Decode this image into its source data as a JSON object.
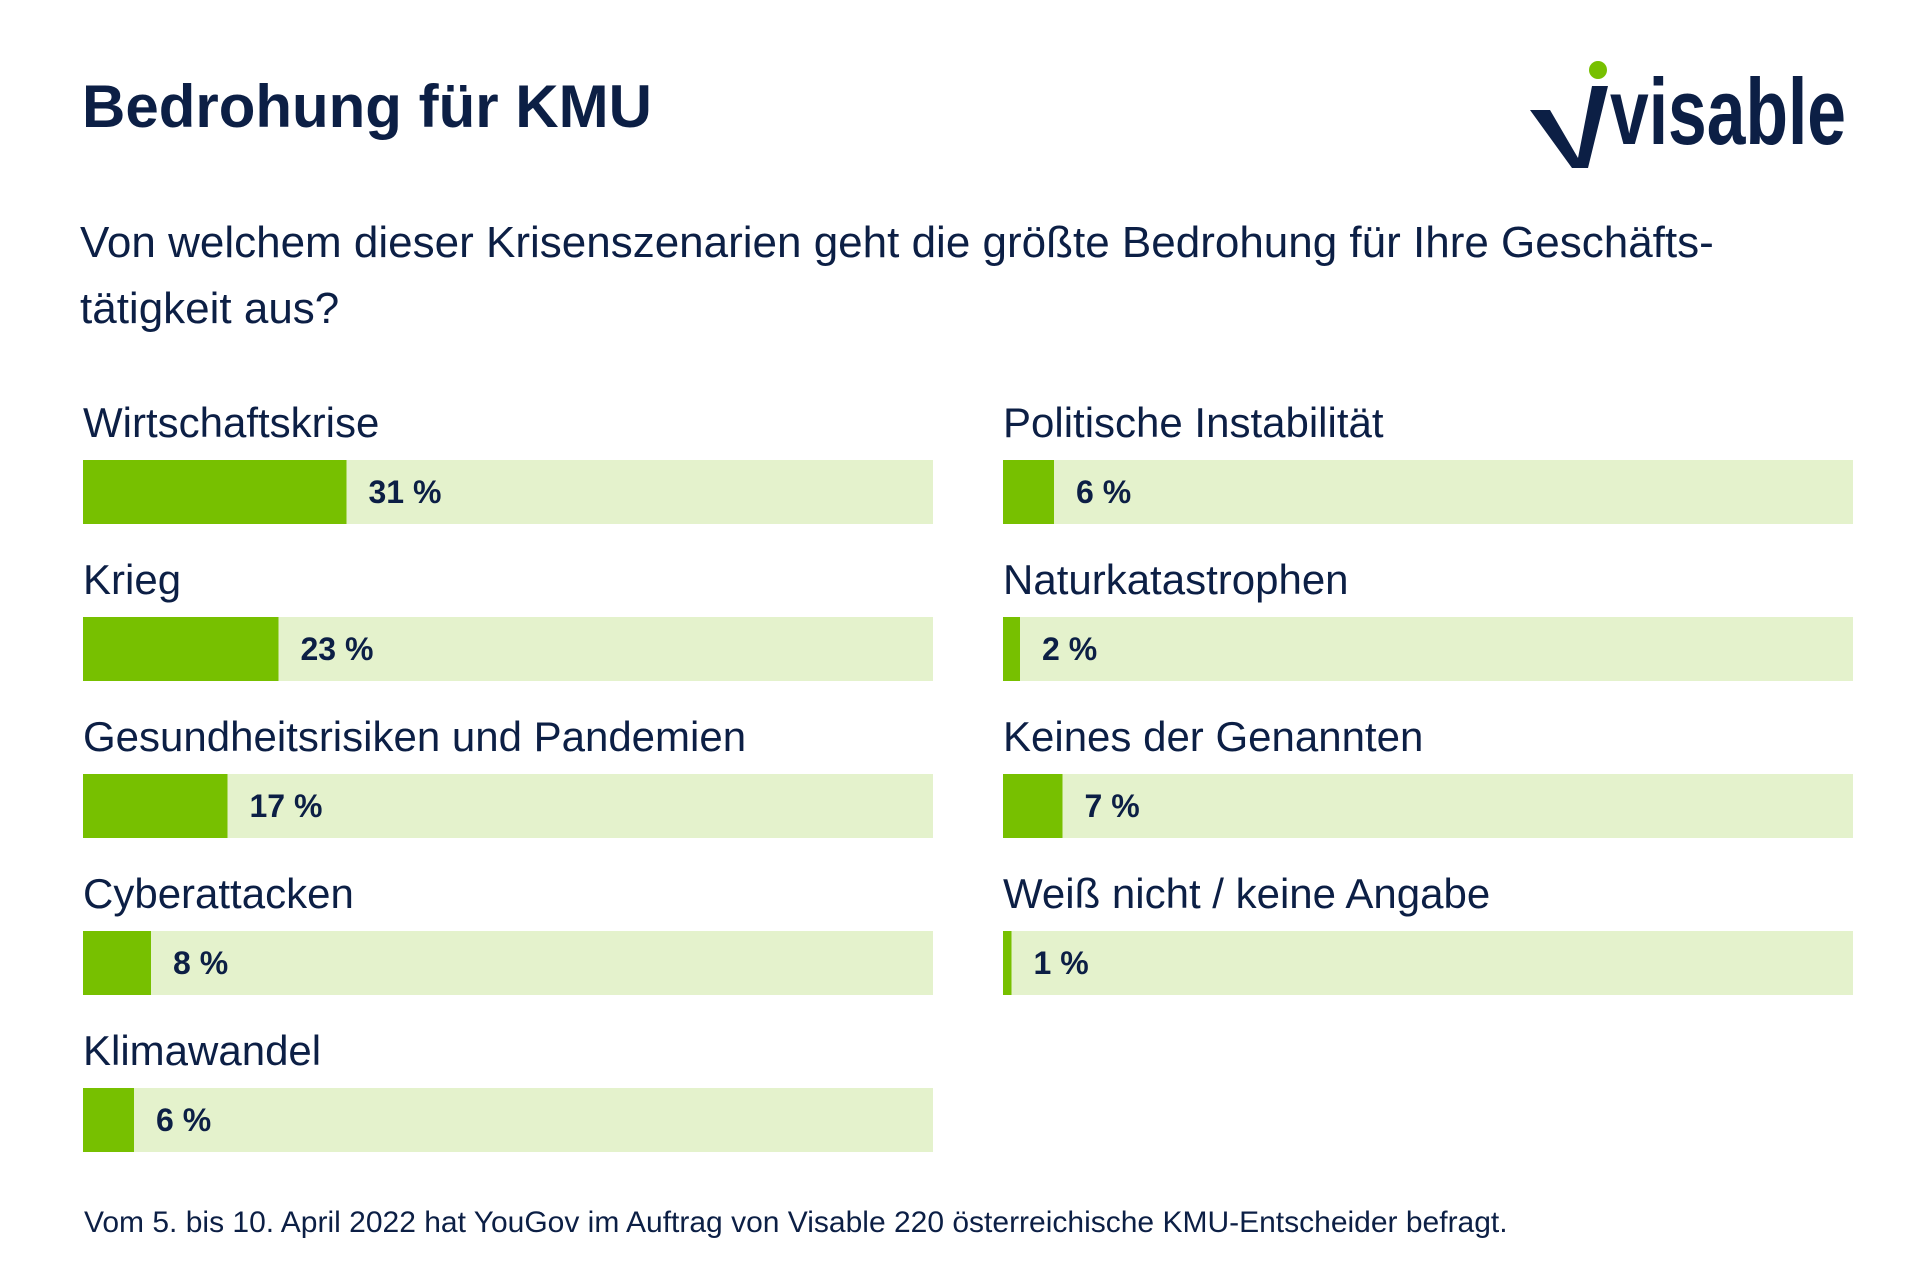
{
  "header": {
    "title": "Bedrohung für KMU",
    "question_line1": "Von welchem dieser Krisenszenarien geht die größte Bedrohung für Ihre Geschäfts-",
    "question_line2": "tätigkeit aus?"
  },
  "logo": {
    "text": "visable",
    "icon": "visable-logo"
  },
  "footer": {
    "note": "Vom 5. bis 10. April 2022 hat YouGov im Auftrag von Visable 220 österreichische KMU-Entscheider befragt."
  },
  "colors": {
    "bar_fill": "#77c000",
    "bar_track": "#e4f2cc",
    "text": "#0c1f45",
    "logo_dot": "#77c000"
  },
  "chart_data": {
    "type": "bar",
    "orientation": "horizontal",
    "unit": "%",
    "xlim": [
      0,
      100
    ],
    "grid": false,
    "legend": "none",
    "categories": [
      "Wirtschaftskrise",
      "Krieg",
      "Gesundheitsrisiken und Pandemien",
      "Cyberattacken",
      "Klimawandel",
      "Politische Instabilität",
      "Naturkatastrophen",
      "Keines der Genannten",
      "Weiß nicht / keine Angabe"
    ],
    "values": [
      31,
      23,
      17,
      8,
      6,
      6,
      2,
      7,
      1
    ],
    "value_labels": [
      "31 %",
      "23 %",
      "17 %",
      "8 %",
      "6 %",
      "6 %",
      "2 %",
      "7 %",
      "1 %"
    ]
  }
}
